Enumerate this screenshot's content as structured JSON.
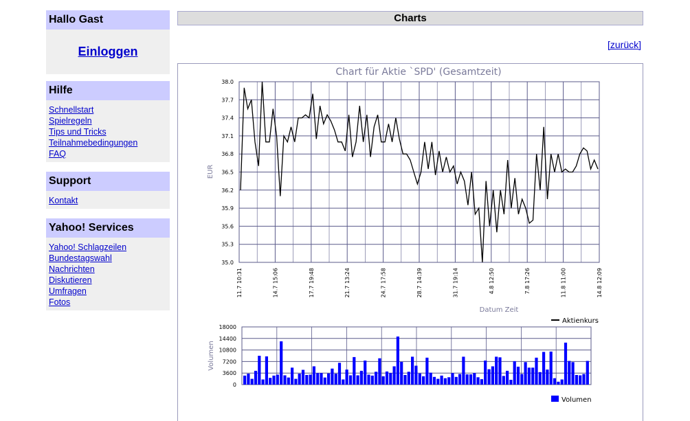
{
  "sidebar": {
    "greeting": "Hallo Gast",
    "login_label": "Einloggen",
    "help": {
      "title": "Hilfe",
      "links": [
        "Schnellstart",
        "Spielregeln",
        "Tips und Tricks",
        "Teilnahmebedingungen",
        "FAQ"
      ]
    },
    "support": {
      "title": "Support",
      "links": [
        "Kontakt"
      ]
    },
    "yahoo": {
      "title": "Yahoo! Services",
      "links": [
        "Yahoo! Schlagzeilen",
        "Bundestagswahl",
        "Nachrichten",
        "Diskutieren",
        "Umfragen",
        "Fotos"
      ]
    }
  },
  "main": {
    "title": "Charts",
    "back_label": "[zurück]"
  },
  "colors": {
    "sidebar_header": "#ccccff",
    "sidebar_body": "#efefef",
    "link": "#0000cc",
    "grid": "#5a5a8a",
    "volume_bar": "#0000ff"
  },
  "chart_data": [
    {
      "type": "line",
      "title": "Chart für Aktie `SPD' (Gesamtzeit)",
      "xlabel": "Datum Zeit",
      "ylabel": "EUR",
      "ylim": [
        35.0,
        38.0
      ],
      "y_ticks": [
        "35.0",
        "35.3",
        "35.6",
        "35.9",
        "36.2",
        "36.5",
        "36.8",
        "37.1",
        "37.4",
        "37.7",
        "38.0"
      ],
      "x_ticks": [
        "11.7 10:31",
        "14.7 15:06",
        "17.7 19:48",
        "21.7 13:24",
        "24.7 17:58",
        "28.7 14:39",
        "31.7 19:14",
        "4.8 12:50",
        "7.8 17:26",
        "11.8 11:00",
        "14.8 12:09"
      ],
      "grid": true,
      "legend": "Aktienkurs",
      "legend_position": "bottom-right",
      "series": [
        {
          "name": "Aktienkurs",
          "values": [
            36.2,
            37.9,
            37.55,
            37.7,
            37.0,
            36.6,
            38.0,
            37.0,
            37.0,
            37.55,
            37.1,
            36.1,
            37.1,
            37.0,
            37.25,
            37.0,
            37.4,
            37.4,
            37.45,
            37.4,
            37.8,
            37.05,
            37.6,
            37.3,
            37.45,
            37.35,
            37.2,
            37.0,
            37.0,
            36.85,
            37.45,
            36.75,
            37.0,
            37.6,
            37.0,
            37.45,
            36.75,
            37.25,
            37.45,
            37.0,
            37.0,
            37.3,
            37.0,
            37.4,
            37.05,
            36.8,
            36.8,
            36.7,
            36.5,
            36.3,
            36.5,
            37.0,
            36.55,
            37.0,
            36.45,
            36.85,
            36.5,
            36.75,
            36.5,
            36.6,
            36.3,
            36.5,
            36.35,
            35.95,
            36.5,
            35.8,
            35.9,
            35.0,
            36.35,
            35.6,
            36.2,
            35.5,
            36.2,
            35.8,
            36.7,
            35.9,
            36.4,
            35.8,
            36.05,
            35.9,
            35.65,
            35.7,
            36.8,
            36.2,
            37.25,
            36.05,
            36.8,
            36.5,
            36.8,
            36.5,
            36.55,
            36.5,
            36.5,
            36.6,
            36.8,
            36.9,
            36.85,
            36.55,
            36.7,
            36.55
          ]
        }
      ]
    },
    {
      "type": "bar",
      "ylabel": "Volumen",
      "ylim": [
        0,
        18000
      ],
      "y_ticks": [
        "0",
        "3600",
        "7200",
        "10800",
        "14400",
        "18000"
      ],
      "grid": true,
      "legend": "Volumen",
      "legend_position": "bottom-right",
      "series": [
        {
          "name": "Volumen",
          "values": [
            2800,
            3400,
            1800,
            4300,
            9000,
            1600,
            8800,
            2100,
            2800,
            3100,
            13500,
            2900,
            2200,
            5300,
            1800,
            3400,
            4600,
            3000,
            3100,
            5700,
            3600,
            3600,
            2200,
            3500,
            5000,
            3400,
            6800,
            1600,
            4700,
            2900,
            8600,
            2900,
            4300,
            7500,
            3100,
            2800,
            4000,
            8200,
            2600,
            4100,
            3600,
            5700,
            15000,
            7100,
            3000,
            4000,
            8700,
            5900,
            3500,
            2600,
            8400,
            3700,
            2400,
            1800,
            2800,
            2000,
            2300,
            3600,
            2400,
            3300,
            8700,
            3200,
            3200,
            3600,
            2300,
            1700,
            7500,
            4800,
            5700,
            8700,
            8500,
            2700,
            4300,
            1500,
            7300,
            5600,
            3300,
            7000,
            5300,
            5300,
            8400,
            3900,
            10200,
            4700,
            10300,
            2000,
            900,
            1600,
            13100,
            7400,
            7000,
            3000,
            2900,
            3300,
            7400
          ]
        }
      ]
    }
  ]
}
